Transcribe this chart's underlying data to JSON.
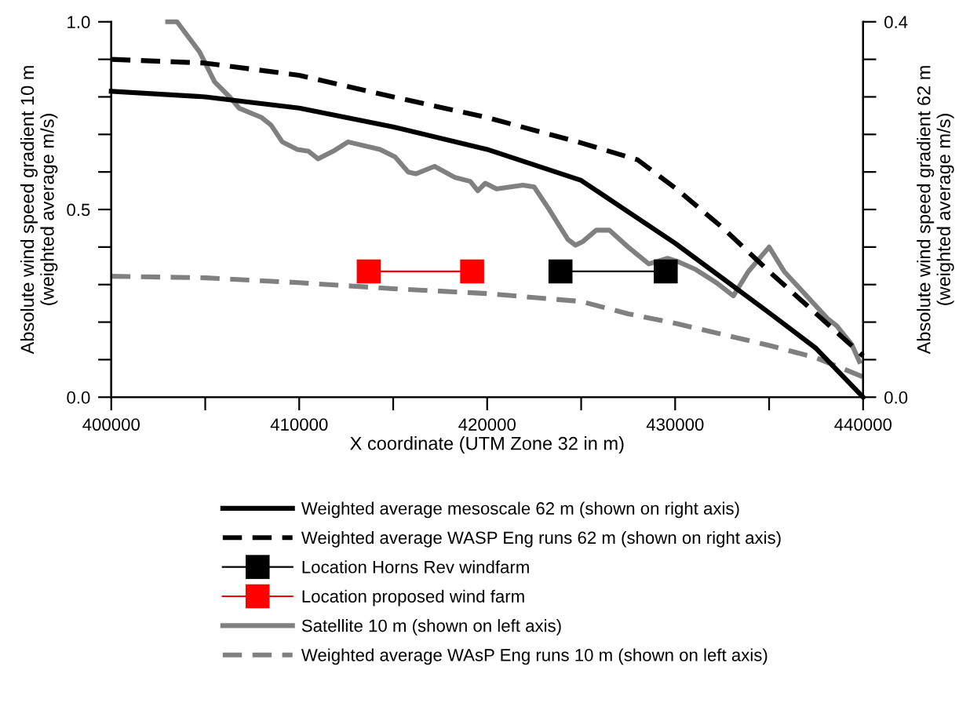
{
  "chart_data": {
    "type": "line",
    "xlabel": "X coordinate (UTM Zone 32 in m)",
    "ylabel": "Absolute wind speed gradient 10 m\n(weighted average m/s)",
    "y2label": "Absolute wind speed gradient 62 m\n(weighted average m/s)",
    "xlim": [
      400000,
      440000
    ],
    "xticks": [
      400000,
      {
        "value": 405000,
        "label": null
      },
      410000,
      {
        "value": 415000,
        "label": null
      },
      420000,
      {
        "value": 425000,
        "label": null
      },
      430000,
      {
        "value": 435000,
        "label": null
      },
      440000
    ],
    "ylim": [
      0,
      1
    ],
    "yticks": [
      {
        "value": 0,
        "label": "0.0"
      },
      {
        "value": 0.1,
        "label": null
      },
      {
        "value": 0.2,
        "label": null
      },
      {
        "value": 0.3,
        "label": null
      },
      {
        "value": 0.4,
        "label": null
      },
      {
        "value": 0.5,
        "label": "0.5"
      },
      {
        "value": 0.6,
        "label": null
      },
      {
        "value": 0.7,
        "label": null
      },
      {
        "value": 0.8,
        "label": null
      },
      {
        "value": 0.9,
        "label": null
      },
      {
        "value": 1,
        "label": "1.0"
      }
    ],
    "y2lim": [
      0,
      0.4
    ],
    "y2ticks": [
      {
        "value": 0,
        "label": "0.0"
      },
      {
        "value": 0.04,
        "label": null
      },
      {
        "value": 0.08,
        "label": null
      },
      {
        "value": 0.12,
        "label": null
      },
      {
        "value": 0.16,
        "label": null
      },
      {
        "value": 0.2,
        "label": null
      },
      {
        "value": 0.24,
        "label": null
      },
      {
        "value": 0.28,
        "label": null
      },
      {
        "value": 0.32,
        "label": null
      },
      {
        "value": 0.36,
        "label": null
      },
      {
        "value": 0.4,
        "label": "0.4"
      }
    ],
    "legend": "bottom",
    "grid": false,
    "series": [
      {
        "name": "Weighted average mesoscale 62 m (shown on right axis)",
        "color": "#000000",
        "axis": "y2",
        "line_style": "solid",
        "marker": "none",
        "x": [
          400000,
          405000,
          410000,
          415000,
          420000,
          425000,
          430000,
          432500,
          435000,
          437500,
          440000
        ],
        "values": [
          0.326,
          0.32,
          0.308,
          0.288,
          0.264,
          0.231,
          0.164,
          0.127,
          0.09,
          0.052,
          0
        ]
      },
      {
        "name": "Weighted average WASP Eng runs 62 m (shown on right axis)",
        "color": "#000000",
        "axis": "y2",
        "line_style": "dashed",
        "marker": "none",
        "x": [
          400000,
          405000,
          410000,
          415000,
          420000,
          425000,
          428000,
          430000,
          432500,
          435000,
          437500,
          440000
        ],
        "values": [
          0.36,
          0.356,
          0.343,
          0.32,
          0.298,
          0.271,
          0.253,
          0.223,
          0.181,
          0.134,
          0.089,
          0.044
        ]
      },
      {
        "name": "Location Horns Rev windfarm",
        "color": "#000000",
        "line_style": "solid",
        "marker": "square",
        "x": [
          423900,
          429500
        ],
        "values": [
          0.335,
          0.335
        ]
      },
      {
        "name": "Location proposed wind farm",
        "color": "#ff0000",
        "line_style": "solid",
        "marker": "square",
        "x": [
          413700,
          419200
        ],
        "values": [
          0.335,
          0.335
        ]
      },
      {
        "name": "Satellite 10 m (shown on left axis)",
        "color": "#808080",
        "line_style": "solid",
        "marker": "none",
        "x": [
          403000,
          403500,
          404700,
          405500,
          406300,
          406800,
          408000,
          408500,
          409100,
          409900,
          410500,
          411000,
          411800,
          412600,
          414300,
          415100,
          415800,
          416200,
          417200,
          418300,
          419100,
          419500,
          419900,
          420500,
          421900,
          422500,
          422700,
          423300,
          424300,
          424700,
          425100,
          425800,
          426500,
          427500,
          428600,
          429600,
          430200,
          431100,
          432200,
          433100,
          433900,
          435000,
          435800,
          436900,
          438100,
          438600,
          439400,
          439800
        ],
        "values": [
          1.0,
          1.0,
          0.92,
          0.84,
          0.8,
          0.77,
          0.745,
          0.725,
          0.68,
          0.66,
          0.655,
          0.635,
          0.655,
          0.68,
          0.66,
          0.64,
          0.6,
          0.595,
          0.615,
          0.585,
          0.575,
          0.55,
          0.57,
          0.555,
          0.565,
          0.56,
          0.545,
          0.5,
          0.42,
          0.405,
          0.415,
          0.445,
          0.445,
          0.4,
          0.355,
          0.37,
          0.36,
          0.34,
          0.305,
          0.27,
          0.335,
          0.4,
          0.335,
          0.275,
          0.21,
          0.19,
          0.14,
          0.095
        ]
      },
      {
        "name": "Weighted average WAsP Eng runs 10 m (shown on left axis)",
        "color": "#808080",
        "line_style": "dashed",
        "marker": "none",
        "x": [
          400000,
          405000,
          410000,
          415000,
          420000,
          425000,
          427500,
          430000,
          435000,
          437500,
          440000
        ],
        "values": [
          0.322,
          0.318,
          0.305,
          0.289,
          0.276,
          0.255,
          0.222,
          0.197,
          0.138,
          0.105,
          0.054
        ]
      }
    ]
  }
}
